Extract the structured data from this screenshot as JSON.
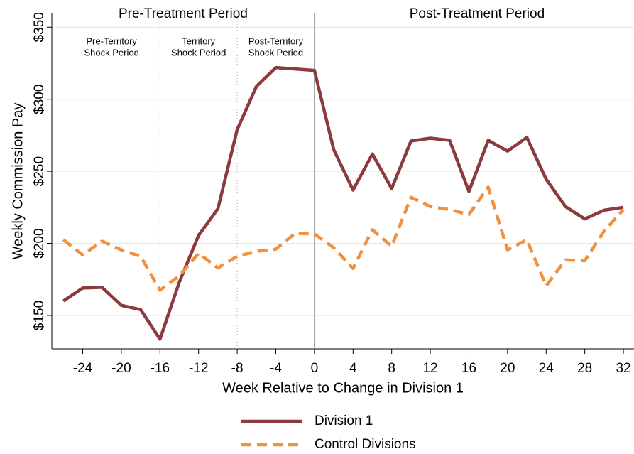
{
  "chart_data": {
    "type": "line",
    "x_label": "Week Relative to Change in Division 1",
    "y_label": "Weekly Commission Pay",
    "period_labels": [
      "Pre-Treatment Period",
      "Post-Treatment Period"
    ],
    "sub_period_labels": [
      [
        "Pre-Territory",
        "Shock Period"
      ],
      [
        "Territory",
        "Shock Period"
      ],
      [
        "Post-Territory",
        "Shock Period"
      ]
    ],
    "vlines": [
      -16,
      -8,
      0
    ],
    "x": [
      -26,
      -24,
      -22,
      -20,
      -18,
      -16,
      -14,
      -12,
      -10,
      -8,
      -6,
      -4,
      -2,
      0,
      2,
      4,
      6,
      8,
      10,
      12,
      14,
      16,
      18,
      20,
      22,
      24,
      26,
      28,
      30,
      32
    ],
    "series": [
      {
        "name": "Division 1",
        "color": "#8b3a3e",
        "dash": false,
        "values": [
          160,
          169,
          169.5,
          157,
          154,
          133.5,
          173,
          205.5,
          224,
          279,
          309,
          322,
          321,
          320,
          265,
          237,
          262,
          238,
          271,
          273,
          271.5,
          236,
          271.5,
          264,
          273.5,
          244.5,
          225.5,
          217,
          223,
          225
        ]
      },
      {
        "name": "Control Divisions",
        "color": "#f0913f",
        "dash": true,
        "values": [
          202.5,
          192,
          201.5,
          195.5,
          191,
          167.5,
          177.5,
          193,
          183,
          191,
          194.5,
          196,
          207,
          206.5,
          197,
          182.5,
          209.5,
          198,
          232,
          225.5,
          223.5,
          220,
          239,
          195.5,
          202.5,
          170.5,
          188.5,
          188,
          208.5,
          223.5
        ]
      }
    ],
    "xlim": [
      -27.2,
      33.1
    ],
    "ylim": [
      126.8,
      360
    ],
    "xticks": [
      -24,
      -20,
      -16,
      -12,
      -8,
      -4,
      0,
      4,
      8,
      12,
      16,
      20,
      24,
      28,
      32
    ],
    "yticks": [
      {
        "value": 150,
        "label": "$150"
      },
      {
        "value": 200,
        "label": "$200"
      },
      {
        "value": 250,
        "label": "$250"
      },
      {
        "value": 300,
        "label": "$300"
      },
      {
        "value": 350,
        "label": "$350"
      }
    ],
    "grid": true
  }
}
